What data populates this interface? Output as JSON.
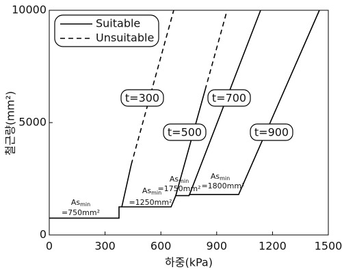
{
  "chart_data": {
    "type": "line",
    "x_label": "하중(kPa)",
    "y_label": "철근량(mm²)",
    "xlim": [
      0,
      1500
    ],
    "ylim": [
      0,
      10000
    ],
    "xticks": [
      0,
      300,
      600,
      900,
      1200,
      1500
    ],
    "yticks": [
      0,
      5000,
      10000
    ],
    "grid": false,
    "legend": "upper left",
    "series": [
      {
        "name": "Suitable",
        "color": "#000000",
        "dash": "solid",
        "x": [
          0,
          375,
          375,
          655,
          680,
          751,
          754,
          1018,
          1452,
          null,
          390,
          441,
          null,
          680,
          838,
          null,
          754,
          1136
        ],
        "values": [
          750,
          750,
          1250,
          1250,
          1750,
          1750,
          1800,
          1800,
          10000,
          null,
          1250,
          3140,
          null,
          1750,
          6460,
          null,
          1800,
          10000
        ]
      },
      {
        "name": "Unsuitable",
        "color": "#000000",
        "dash": "dashed",
        "x": [
          441,
          669,
          null,
          838,
          956
        ],
        "values": [
          3140,
          10000,
          null,
          6460,
          10000
        ]
      }
    ],
    "thickness_labels": [
      "t=300",
      "t=500",
      "t=700",
      "t=900"
    ],
    "asmin_labels": [
      {
        "text": "As",
        "sub": "min",
        "value": "=750mm²"
      },
      {
        "text": "As",
        "sub": "min",
        "value": "=1250mm²"
      },
      {
        "text": "As",
        "sub": "min",
        "value": "=1750mm²"
      },
      {
        "text": "As",
        "sub": "min",
        "value": "=1800mm²"
      }
    ]
  }
}
